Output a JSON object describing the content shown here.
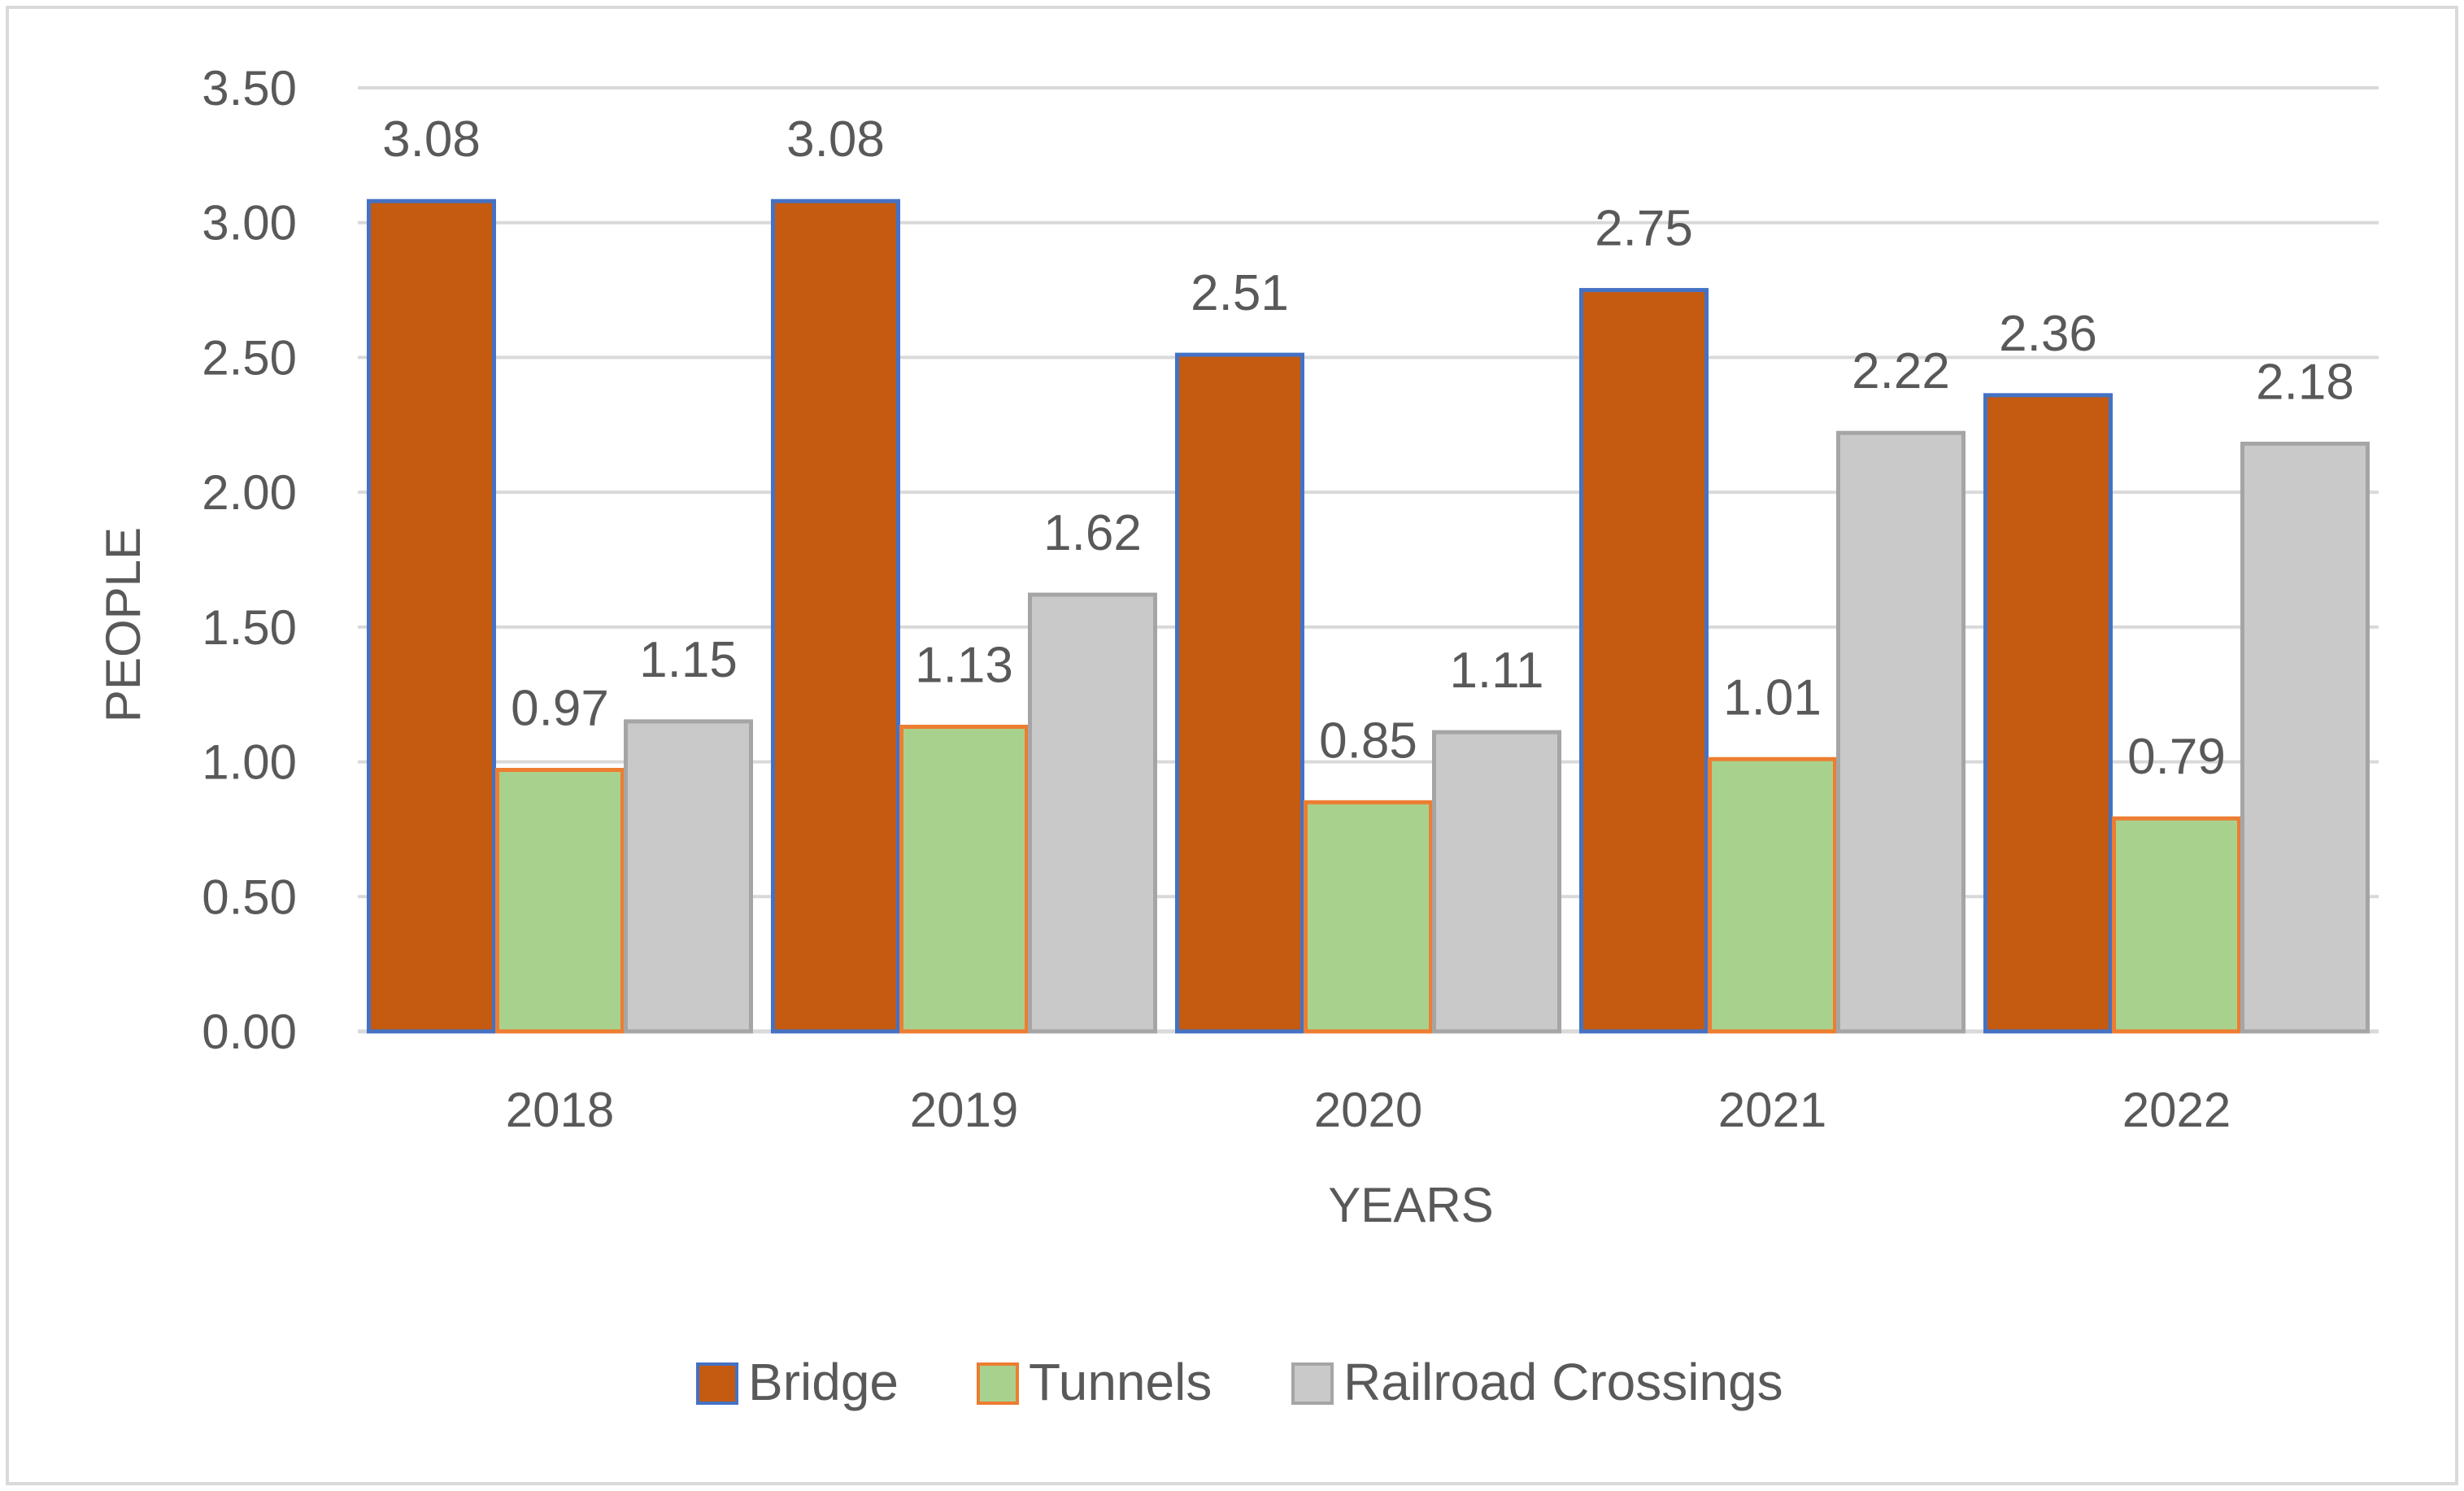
{
  "chart_data": {
    "type": "bar",
    "title": "",
    "xlabel": "YEARS",
    "ylabel": "PEOPLE",
    "ylim": [
      0,
      3.5
    ],
    "ytick_step": 0.5,
    "ytick_labels": [
      "0.00",
      "0.50",
      "1.00",
      "1.50",
      "2.00",
      "2.50",
      "3.00",
      "3.50"
    ],
    "categories": [
      "2018",
      "2019",
      "2020",
      "2021",
      "2022"
    ],
    "grid": true,
    "legend_position": "bottom",
    "series": [
      {
        "name": "Bridge",
        "fill": "#C55A11",
        "border": "#4472C4",
        "values": [
          3.08,
          3.08,
          2.51,
          2.75,
          2.36
        ],
        "labels": [
          "3.08",
          "3.08",
          "2.51",
          "2.75",
          "2.36"
        ]
      },
      {
        "name": "Tunnels",
        "fill": "#A9D18E",
        "border": "#ED7D31",
        "values": [
          0.97,
          1.13,
          0.85,
          1.01,
          0.79
        ],
        "labels": [
          "0.97",
          "1.13",
          "0.85",
          "1.01",
          "0.79"
        ]
      },
      {
        "name": "Railroad Crossings",
        "fill": "#C9C9C9",
        "border": "#A5A5A5",
        "values": [
          1.15,
          1.62,
          1.11,
          2.22,
          2.18
        ],
        "labels": [
          "1.15",
          "1.62",
          "1.11",
          "2.22",
          "2.18"
        ]
      }
    ]
  },
  "colors": {
    "gridline": "#D9D9D9",
    "text": "#595959",
    "frame": "#D9D9D9"
  }
}
